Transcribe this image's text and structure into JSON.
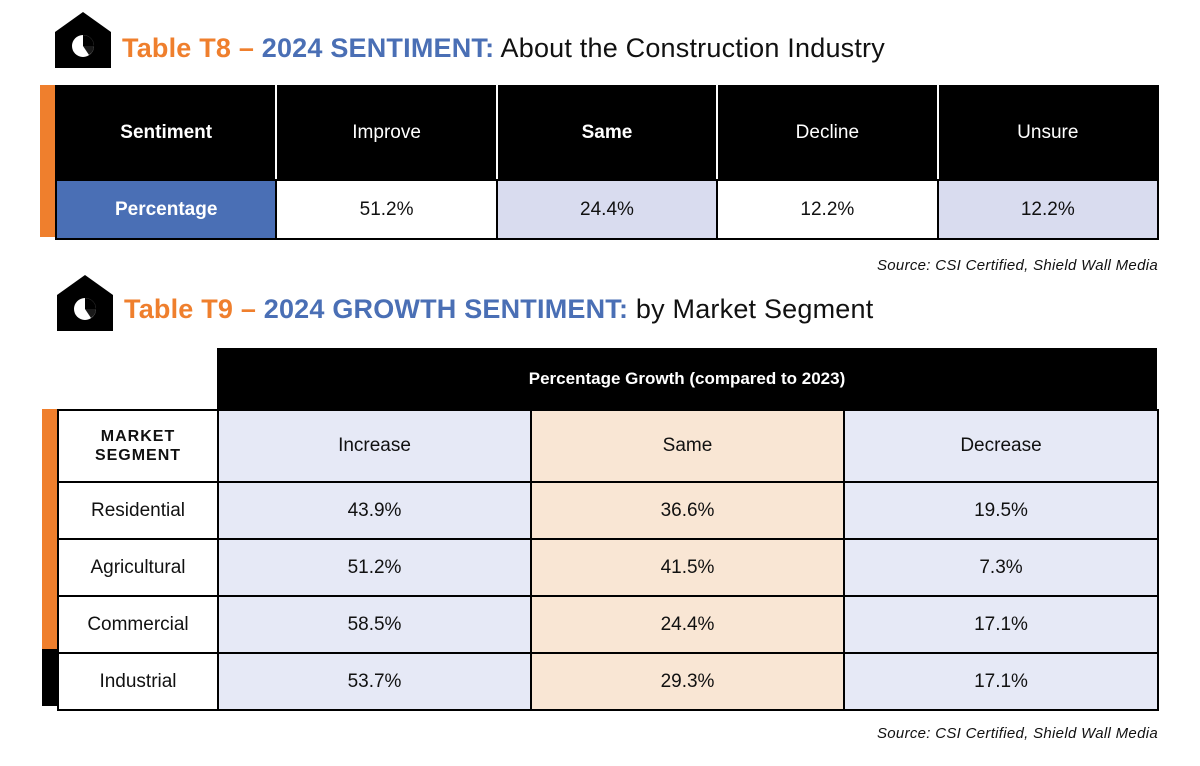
{
  "colors": {
    "orange": "#ef7f2d",
    "blue": "#4a6fb5",
    "lavender": "#d9dcef",
    "peach": "#f9e6d4"
  },
  "t8": {
    "icon": "house-chart-icon",
    "title_prefix": "Table T8 – ",
    "title_highlight": "2024 SENTIMENT:",
    "title_rest": " About the Construction Industry",
    "headers": [
      "Sentiment",
      "Improve",
      "Same",
      "Decline",
      "Unsure"
    ],
    "row": [
      "Percentage",
      "51.2%",
      "24.4%",
      "12.2%",
      "12.2%"
    ],
    "source": "Source: CSI Certified, Shield Wall Media"
  },
  "t9": {
    "icon": "house-chart-icon",
    "title_prefix": "Table T9 – ",
    "title_highlight": "2024 GROWTH SENTIMENT:",
    "title_rest": " by Market Segment",
    "group_header": "Percentage Growth (compared to 2023)",
    "headers": [
      "MARKET SEGMENT",
      "Increase",
      "Same",
      "Decrease"
    ],
    "rows": [
      [
        "Residential",
        "43.9%",
        "36.6%",
        "19.5%"
      ],
      [
        "Agricultural",
        "51.2%",
        "41.5%",
        "7.3%"
      ],
      [
        "Commercial",
        "58.5%",
        "24.4%",
        "17.1%"
      ],
      [
        "Industrial",
        "53.7%",
        "29.3%",
        "17.1%"
      ]
    ],
    "source": "Source: CSI Certified, Shield Wall Media"
  }
}
